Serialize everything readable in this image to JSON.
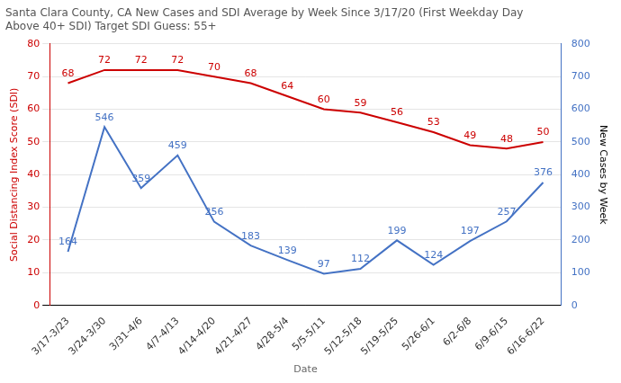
{
  "chart_data": {
    "type": "line",
    "title": "Santa Clara County, CA New Cases and SDI Average by Week Since 3/17/20 (First Weekday Day\nAbove 40+ SDI) Target SDI Guess: 55+",
    "xlabel": "Date",
    "ylabel": "Social Distancing Index Score (SDI)",
    "y2label": "New Cases by Week",
    "categories": [
      "3/17-3/23",
      "3/24-3/30",
      "3/31-4/6",
      "4/7-4/13",
      "4/14-4/20",
      "4/21-4/27",
      "4/28-5/4",
      "5/5-5/11",
      "5/12-5/18",
      "5/19-5/25",
      "5/26-6/1",
      "6/2-6/8",
      "6/9-6/15",
      "6/16-6/22"
    ],
    "series": [
      {
        "color": "#cc0000",
        "values": [
          68,
          72,
          72,
          72,
          70,
          68,
          64,
          60,
          59,
          56,
          53,
          49,
          48,
          50
        ]
      },
      {
        "color": "#4472c4",
        "axis": "y2",
        "values": [
          164,
          546,
          359,
          459,
          256,
          183,
          139,
          97,
          112,
          199,
          124,
          197,
          257,
          376
        ]
      }
    ],
    "ylim": [
      0,
      80
    ],
    "yticks": [
      0,
      10,
      20,
      30,
      40,
      50,
      60,
      70,
      80
    ],
    "y2lim": [
      0,
      800
    ],
    "y2ticks": [
      0,
      100,
      200,
      300,
      400,
      500,
      600,
      700,
      800
    ],
    "grid": true,
    "data_labels": true
  }
}
